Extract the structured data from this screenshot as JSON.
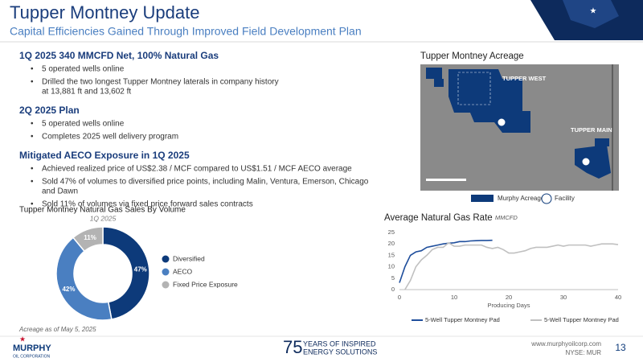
{
  "header": {
    "title": "Tupper Montney Update",
    "subtitle": "Capital Efficiencies Gained Through Improved Field Development Plan"
  },
  "sections": [
    {
      "heading": "1Q 2025 340 MMCFD Net, 100% Natural Gas",
      "bullets": [
        [
          "5 operated wells online"
        ],
        [
          "Drilled the two longest Tupper Montney laterals in company history",
          "at 13,881 ft and 13,602 ft"
        ]
      ]
    },
    {
      "heading": "2Q 2025 Plan",
      "bullets": [
        [
          "5 operated wells online"
        ],
        [
          "Completes 2025 well delivery program"
        ]
      ]
    },
    {
      "heading": "Mitigated AECO Exposure in 1Q 2025",
      "bullets": [
        [
          "Achieved realized price of US$2.38 / MCF compared to US$1.51 / MCF AECO average"
        ],
        [
          "Sold 47% of volumes to diversified price points, including Malin, Ventura, Emerson, Chicago",
          "and Dawn"
        ],
        [
          "Sold 11% of volumes via fixed price forward sales contracts"
        ]
      ]
    }
  ],
  "map": {
    "title": "Tupper Montney Acreage",
    "labels": [
      "TUPPER WEST",
      "TUPPER MAIN"
    ],
    "legend": [
      "Murphy Acreage",
      "Facility"
    ]
  },
  "chart_data": [
    {
      "type": "donut",
      "title": "Tupper Montney Natural Gas Sales By Volume",
      "subtitle": "1Q 2025",
      "categories": [
        "Diversified",
        "AECO",
        "Fixed Price Exposure"
      ],
      "values": [
        47,
        42,
        11
      ],
      "value_labels": [
        "47%",
        "42%",
        "11%"
      ],
      "colors": [
        "#0d3a7a",
        "#4a7fc1",
        "#b3b3b3"
      ]
    },
    {
      "type": "line",
      "title": "Average Natural Gas Rate",
      "unit": "MMCFD",
      "xlabel": "Producing Days",
      "xlim": [
        0,
        40
      ],
      "xticks": [
        0,
        10,
        20,
        30,
        40
      ],
      "ylim": [
        0,
        25
      ],
      "yticks": [
        0,
        5,
        10,
        15,
        20,
        25
      ],
      "grid": false,
      "series": [
        {
          "name": "5-Well Tupper Montney Pad",
          "color": "#1f4e9c",
          "x": [
            0,
            1,
            2,
            3,
            4,
            5,
            6,
            7,
            8,
            9,
            10,
            11,
            12,
            13,
            14,
            15,
            16,
            17
          ],
          "values": [
            3,
            10,
            15,
            16.5,
            17,
            18.5,
            19,
            19.5,
            20,
            20.3,
            20.5,
            21,
            21,
            21.3,
            21.4,
            21.5,
            21.5,
            21.6
          ]
        },
        {
          "name": "5-Well Tupper Montney Pad",
          "color": "#c0c0c0",
          "x": [
            1,
            2,
            3,
            4,
            5,
            6,
            7,
            8,
            9,
            10,
            11,
            12,
            13,
            14,
            15,
            16,
            17,
            18,
            19,
            20,
            21,
            22,
            23,
            24,
            25,
            26,
            27,
            28,
            29,
            30,
            31,
            32,
            33,
            34,
            35,
            36,
            37,
            38,
            39,
            40
          ],
          "values": [
            0,
            4,
            10,
            13,
            15,
            17.5,
            18.5,
            18.5,
            20.5,
            19,
            19,
            19.5,
            19.5,
            19.5,
            19.5,
            18.5,
            18,
            18.5,
            17.5,
            16,
            16,
            16.5,
            17,
            18,
            18.5,
            18.5,
            18.5,
            19,
            19.5,
            19,
            19.5,
            19.5,
            19.5,
            19.5,
            19,
            19.5,
            20,
            20,
            20,
            19.7
          ]
        }
      ]
    }
  ],
  "footer": {
    "note": "Acreage as of May 5, 2025",
    "logo": "MURPHY",
    "logo_sub": "OIL CORPORATION",
    "anniv_number": "75",
    "anniv_line1": "YEARS OF INSPIRED",
    "anniv_line2": "ENERGY SOLUTIONS",
    "url": "www.murphyoilcorp.com",
    "ticker": "NYSE: MUR",
    "page": "13"
  }
}
